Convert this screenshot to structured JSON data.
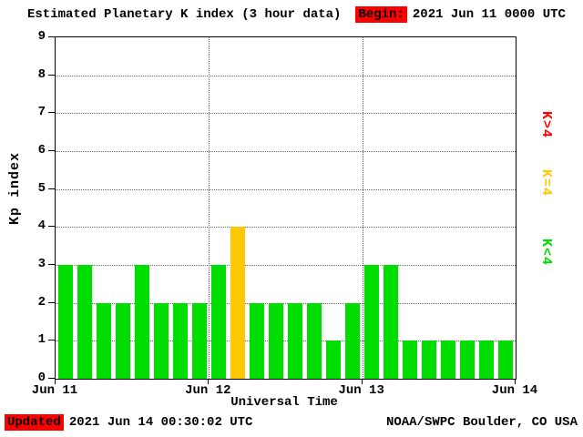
{
  "title": "Estimated Planetary K index (3 hour data)",
  "begin_label": "Begin:",
  "begin_value": "2021 Jun 11 0000 UTC",
  "legend": [
    {
      "label": "K>4",
      "color": "#ff0000"
    },
    {
      "label": "K=4",
      "color": "#ffc800"
    },
    {
      "label": "K<4",
      "color": "#00dd00"
    }
  ],
  "footer": {
    "updated_label": "Updated",
    "updated_value": "2021 Jun 14 00:30:02 UTC",
    "credit": "NOAA/SWPC Boulder, CO USA"
  },
  "chart_data": {
    "type": "bar",
    "title": "Estimated Planetary K index (3 hour data)",
    "xlabel": "Universal Time",
    "ylabel": "Kp index",
    "ylim": [
      0,
      9
    ],
    "bin_hours": 3,
    "grid": "dotted horizontal lines at each integer, dotted vertical lines at day boundaries",
    "x_ticks": [
      "Jun 11",
      "Jun 12",
      "Jun 13",
      "Jun 14"
    ],
    "y_ticks": [
      0,
      1,
      2,
      3,
      4,
      5,
      6,
      7,
      8,
      9
    ],
    "values": [
      3,
      3,
      2,
      2,
      3,
      2,
      2,
      2,
      3,
      4,
      2,
      2,
      2,
      2,
      1,
      2,
      3,
      3,
      1,
      1,
      1,
      1,
      1,
      1
    ],
    "color_rule": {
      "lt4": "#00dd00",
      "eq4": "#ffc800",
      "gt4": "#ff0000"
    },
    "begin": "2021 Jun 11 0000 UTC",
    "updated": "2021 Jun 14 00:30:02 UTC",
    "source": "NOAA/SWPC Boulder, CO USA"
  }
}
